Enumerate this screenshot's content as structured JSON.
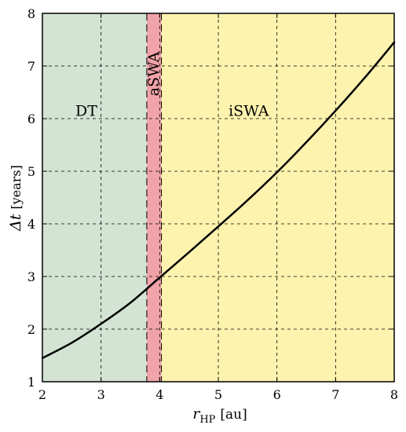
{
  "chart_data": {
    "type": "line",
    "xlabel": {
      "var": "r",
      "sub": "HP",
      "unit": "[au]"
    },
    "ylabel": {
      "var": "Δt",
      "unit": "[years]"
    },
    "xlim": [
      2,
      8
    ],
    "ylim": [
      1,
      8
    ],
    "xticks": [
      "2",
      "3",
      "4",
      "5",
      "6",
      "7",
      "8"
    ],
    "yticks": [
      "1",
      "2",
      "3",
      "4",
      "5",
      "6",
      "7",
      "8"
    ],
    "grid": true,
    "regions": [
      {
        "label": "DT",
        "x_start": 2.0,
        "x_end": 3.78,
        "color": "#d3e4d4",
        "vertical_label": false
      },
      {
        "label": "aSWA",
        "x_start": 3.78,
        "x_end": 4.03,
        "color": "#f0a3a8",
        "vertical_label": true
      },
      {
        "label": "iSWA",
        "x_start": 4.03,
        "x_end": 8.0,
        "color": "#fdf3ae",
        "vertical_label": false
      }
    ],
    "series": [
      {
        "color": "#000000",
        "x": [
          2.0,
          2.5,
          3.0,
          3.5,
          4.0,
          4.5,
          5.0,
          5.5,
          6.0,
          6.5,
          7.0,
          7.5,
          8.0
        ],
        "y": [
          1.45,
          1.74,
          2.1,
          2.5,
          2.98,
          3.46,
          3.95,
          4.45,
          4.98,
          5.55,
          6.15,
          6.78,
          7.45
        ]
      }
    ]
  }
}
